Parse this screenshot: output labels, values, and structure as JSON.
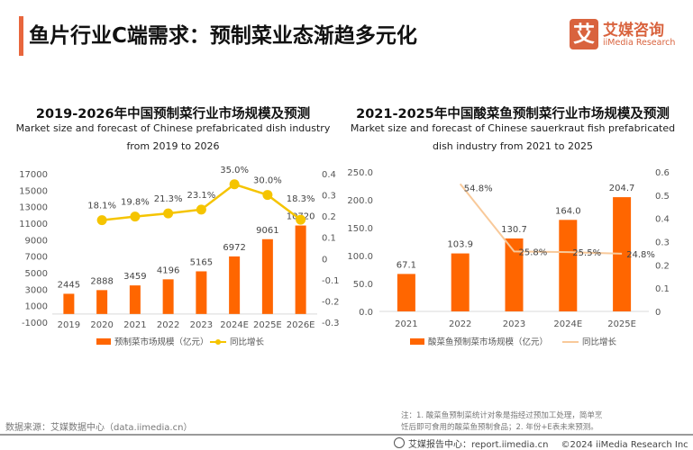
{
  "header": {
    "title": "鱼片行业C端需求：预制菜业态渐趋多元化",
    "logo_mark": "艾",
    "logo_cn": "艾媒咨询",
    "logo_en": "iiMedia Research"
  },
  "colors": {
    "accent": "#e8663d",
    "bar": "#ff6600",
    "line_left": "#f5c400",
    "line_right": "#f8c99a"
  },
  "chart_data": [
    {
      "type": "bar",
      "title": "2019-2026年中国预制菜行业市场规模及预测",
      "subtitle_lines": [
        "Market size and forecast of Chinese prefabricated dish industry",
        "from 2019 to 2026"
      ],
      "categories": [
        "2019",
        "2020",
        "2021",
        "2022",
        "2023",
        "2024E",
        "2025E",
        "2026E"
      ],
      "series": [
        {
          "name": "预制菜市场规模（亿元）",
          "type": "bar",
          "axis": "left",
          "values": [
            2445,
            2888,
            3459,
            4196,
            5165,
            6972,
            9061,
            10720
          ],
          "labels": [
            "2445",
            "2888",
            "3459",
            "4196",
            "5165",
            "6972",
            "9061",
            "10720"
          ]
        },
        {
          "name": "同比增长",
          "type": "line",
          "axis": "right",
          "marker": "circle",
          "values": [
            null,
            0.181,
            0.198,
            0.213,
            0.231,
            0.35,
            0.3,
            0.183
          ],
          "labels": [
            null,
            "18.1%",
            "19.8%",
            "21.3%",
            "23.1%",
            "35.0%",
            "30.0%",
            "18.3%"
          ]
        }
      ],
      "y_left": {
        "ylim": [
          -1000,
          17000
        ],
        "ticks": [
          "17000",
          "15000",
          "13000",
          "11000",
          "9000",
          "7000",
          "5000",
          "3000",
          "1000",
          "-1000"
        ]
      },
      "y_right": {
        "ylim": [
          -0.3,
          0.4
        ],
        "ticks": [
          "0.4",
          "0.3",
          "0.2",
          "0.1",
          "0",
          "-0.1",
          "-0.2",
          "-0.3"
        ]
      },
      "legend": [
        "预制菜市场规模（亿元）",
        "同比增长"
      ],
      "legend_position": "bottom",
      "grid": false
    },
    {
      "type": "bar",
      "title": "2021-2025年中国酸菜鱼预制菜行业市场规模及预测",
      "subtitle_lines": [
        "Market size and forecast of Chinese sauerkraut fish prefabricated",
        "dish industry from 2021 to 2025"
      ],
      "categories": [
        "2021",
        "2022",
        "2023",
        "2024E",
        "2025E"
      ],
      "series": [
        {
          "name": "酸菜鱼预制菜市场规模（亿元）",
          "type": "bar",
          "axis": "left",
          "values": [
            67.1,
            103.9,
            130.7,
            164.0,
            204.7
          ],
          "labels": [
            "67.1",
            "103.9",
            "130.7",
            "164.0",
            "204.7"
          ]
        },
        {
          "name": "同比增长",
          "type": "line",
          "axis": "right",
          "marker": "none",
          "values": [
            null,
            0.548,
            0.258,
            0.255,
            0.248
          ],
          "labels": [
            null,
            "54.8%",
            "25.8%",
            "25.5%",
            "24.8%"
          ]
        }
      ],
      "y_left": {
        "ylim": [
          0,
          250
        ],
        "ticks": [
          "250.0",
          "200.0",
          "150.0",
          "100.0",
          "50.0",
          "0.0"
        ]
      },
      "y_right": {
        "ylim": [
          0,
          0.6
        ],
        "ticks": [
          "0.6",
          "0.5",
          "0.4",
          "0.3",
          "0.2",
          "0.1",
          "0"
        ]
      },
      "legend": [
        "酸菜鱼预制菜市场规模（亿元）",
        "同比增长"
      ],
      "legend_position": "bottom",
      "grid": false
    }
  ],
  "footer": {
    "source": "数据来源：艾媒数据中心（data.iimedia.cn）",
    "note_line1": "注：1. 酸菜鱼预制菜统计对象是指经过预加工处理，简单烹",
    "note_line2": "饪后即可食用的酸菜鱼预制食品；2. 年份+E表未来预测。",
    "report_center": "艾媒报告中心：report.iimedia.cn",
    "copyright": "©2024  iiMedia Research  Inc"
  }
}
